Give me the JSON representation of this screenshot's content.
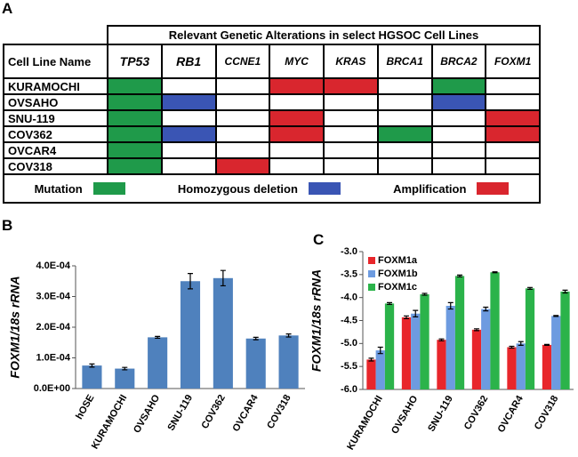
{
  "panels": {
    "a": "A",
    "b": "B",
    "c": "C"
  },
  "table": {
    "title": "Relevant Genetic Alterations in select HGSOC Cell Lines",
    "corner": "Cell Line Name",
    "columns": [
      "TP53",
      "RB1",
      "CCNE1",
      "MYC",
      "KRAS",
      "BRCA1",
      "BRCA2",
      "FOXM1"
    ],
    "rows": [
      {
        "name": "KURAMOCHI",
        "cells": [
          "#1f9a4a",
          null,
          null,
          "#d9262e",
          "#d9262e",
          null,
          "#1f9a4a",
          null
        ]
      },
      {
        "name": "OVSAHO",
        "cells": [
          "#1f9a4a",
          "#3a55b4",
          null,
          null,
          null,
          null,
          "#3a55b4",
          null
        ]
      },
      {
        "name": "SNU-119",
        "cells": [
          "#1f9a4a",
          null,
          null,
          "#d9262e",
          null,
          null,
          null,
          "#d9262e"
        ]
      },
      {
        "name": "COV362",
        "cells": [
          "#1f9a4a",
          "#3a55b4",
          null,
          "#d9262e",
          null,
          "#1f9a4a",
          null,
          "#d9262e"
        ]
      },
      {
        "name": "OVCAR4",
        "cells": [
          "#1f9a4a",
          null,
          null,
          null,
          null,
          null,
          null,
          null
        ]
      },
      {
        "name": "COV318",
        "cells": [
          "#1f9a4a",
          null,
          "#d9262e",
          null,
          null,
          null,
          null,
          null
        ]
      }
    ],
    "legend": [
      {
        "label": "Mutation",
        "color": "#1f9a4a"
      },
      {
        "label": "Homozygous deletion",
        "color": "#3a55b4"
      },
      {
        "label": "Amplification",
        "color": "#d9262e"
      }
    ]
  },
  "chart_data": [
    {
      "type": "bar",
      "y_label": "FOXM1/18s rRNA",
      "categories": [
        "hOSE",
        "KURAMOCHI",
        "OVSAHO",
        "SNU-119",
        "COV362",
        "OVCAR4",
        "COV318"
      ],
      "values": [
        7.5e-05,
        6.5e-05,
        0.000167,
        0.00035,
        0.00036,
        0.000163,
        0.000173
      ],
      "errors": [
        5e-06,
        4e-06,
        3e-06,
        2.5e-05,
        2.5e-05,
        4e-06,
        5e-06
      ],
      "color": "#4f81bd",
      "ylim": [
        0,
        0.0004
      ],
      "yticks": [
        {
          "value": 0,
          "label": "0.0E+00"
        },
        {
          "value": 0.0001,
          "label": "1.0E-04"
        },
        {
          "value": 0.0002,
          "label": "2.0E-04"
        },
        {
          "value": 0.0003,
          "label": "3.0E-04"
        },
        {
          "value": 0.0004,
          "label": "4.0E-04"
        }
      ]
    },
    {
      "type": "bar",
      "y_label": "FOXM1/18s rRNA",
      "categories": [
        "KURAMOCHI",
        "OVSAHO",
        "SNU-119",
        "COV362",
        "OVCAR4",
        "COV318"
      ],
      "series": [
        {
          "name": "FOXM1a",
          "color": "#e8262b",
          "values": [
            -5.35,
            -4.43,
            -4.92,
            -4.7,
            -5.08,
            -5.03
          ],
          "errors": [
            0.03,
            0.03,
            0.02,
            0.02,
            0.02,
            0.01
          ]
        },
        {
          "name": "FOXM1b",
          "color": "#6d9be0",
          "values": [
            -5.15,
            -4.35,
            -4.18,
            -4.25,
            -5.0,
            -4.4
          ],
          "errors": [
            0.07,
            0.07,
            0.07,
            0.04,
            0.04,
            0.01
          ]
        },
        {
          "name": "FOXM1c",
          "color": "#2bb34a",
          "values": [
            -4.13,
            -3.93,
            -3.53,
            -3.45,
            -3.8,
            -3.87
          ],
          "errors": [
            0.02,
            0.02,
            0.02,
            0.01,
            0.02,
            0.03
          ]
        }
      ],
      "legend": "upper-left",
      "ylim": [
        -6,
        -3
      ],
      "yticks": [
        {
          "value": -6,
          "label": "-6.0"
        },
        -5.5,
        {
          "value": -5,
          "label": "-5.0"
        },
        -4.5,
        {
          "value": -4,
          "label": "-4.0"
        },
        -3.5,
        {
          "value": -3,
          "label": "-3.0"
        }
      ]
    }
  ]
}
